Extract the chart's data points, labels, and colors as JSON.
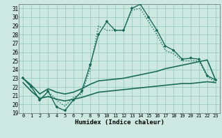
{
  "title": "",
  "xlabel": "Humidex (Indice chaleur)",
  "bg_color": "#cce8e0",
  "grid_color": "#99ccc0",
  "line_color": "#1a6b5a",
  "xlim": [
    -0.5,
    23.5
  ],
  "ylim": [
    19,
    31.5
  ],
  "xticks": [
    0,
    1,
    2,
    3,
    4,
    5,
    6,
    7,
    8,
    9,
    10,
    11,
    12,
    13,
    14,
    15,
    16,
    17,
    18,
    19,
    20,
    21,
    22,
    23
  ],
  "yticks": [
    19,
    20,
    21,
    22,
    23,
    24,
    25,
    26,
    27,
    28,
    29,
    30,
    31
  ],
  "series": [
    {
      "x": [
        0,
        1,
        2,
        3,
        4,
        5,
        6,
        7,
        8,
        9,
        10,
        11,
        12,
        13,
        14,
        15,
        16,
        17,
        18,
        19,
        20,
        21,
        22,
        23
      ],
      "y": [
        23,
        22,
        20.5,
        21.5,
        19.7,
        19.3,
        20.5,
        21.5,
        24.5,
        28,
        29.5,
        28.5,
        28.5,
        31,
        31.5,
        30,
        28.5,
        26.7,
        26.2,
        25.2,
        25.3,
        25.2,
        23.3,
        22.8
      ],
      "marker": "+",
      "lw": 1.0,
      "dotted": false
    },
    {
      "x": [
        0,
        1,
        2,
        3,
        4,
        5,
        6,
        7,
        8,
        9,
        10,
        11,
        12,
        13,
        14,
        15,
        16,
        17,
        18,
        19,
        20,
        21,
        22,
        23
      ],
      "y": [
        23,
        22,
        20.5,
        21.5,
        20.5,
        19.8,
        20.8,
        21.2,
        24.0,
        29.0,
        28.5,
        28.5,
        28.5,
        30.8,
        31.0,
        29.5,
        28.0,
        26.2,
        25.8,
        25.0,
        25.0,
        25.0,
        23.2,
        22.5
      ],
      "marker": "",
      "lw": 1.0,
      "dotted": true
    },
    {
      "x": [
        0,
        1,
        2,
        3,
        4,
        5,
        6,
        7,
        8,
        9,
        10,
        11,
        12,
        13,
        14,
        15,
        16,
        17,
        18,
        19,
        20,
        21,
        22,
        23
      ],
      "y": [
        23.0,
        22.2,
        21.2,
        21.8,
        21.4,
        21.2,
        21.4,
        21.8,
        22.3,
        22.7,
        22.8,
        22.9,
        23.0,
        23.2,
        23.4,
        23.6,
        23.8,
        24.1,
        24.3,
        24.5,
        24.7,
        24.9,
        25.1,
        22.8
      ],
      "marker": "",
      "lw": 1.2,
      "dotted": false
    },
    {
      "x": [
        0,
        1,
        2,
        3,
        4,
        5,
        6,
        7,
        8,
        9,
        10,
        11,
        12,
        13,
        14,
        15,
        16,
        17,
        18,
        19,
        20,
        21,
        22,
        23
      ],
      "y": [
        22.5,
        21.5,
        20.7,
        20.9,
        20.6,
        20.4,
        20.6,
        20.8,
        21.1,
        21.4,
        21.5,
        21.6,
        21.7,
        21.8,
        21.9,
        22.0,
        22.1,
        22.2,
        22.3,
        22.4,
        22.4,
        22.5,
        22.6,
        22.5
      ],
      "marker": "",
      "lw": 1.2,
      "dotted": false
    }
  ]
}
